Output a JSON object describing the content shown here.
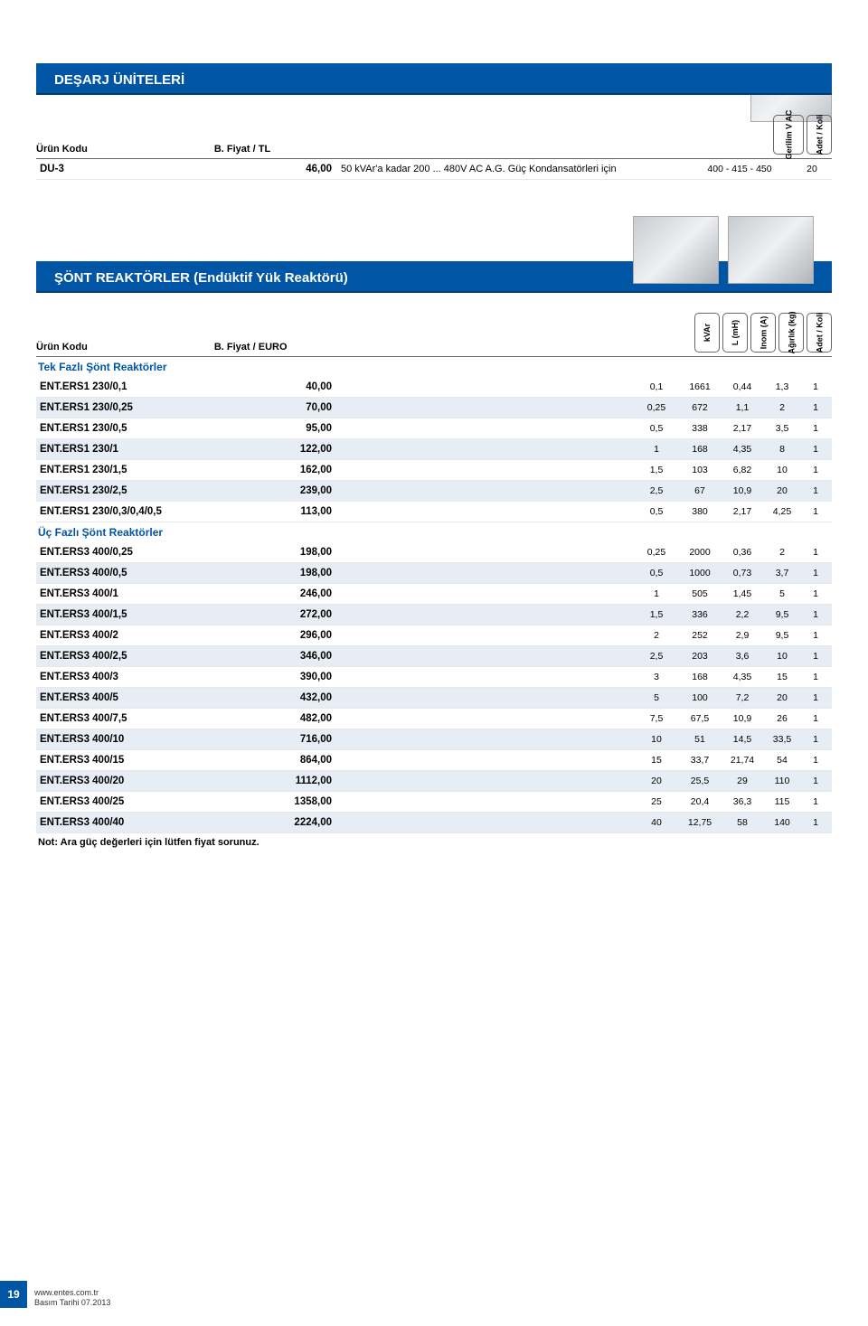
{
  "colors": {
    "header_bg": "#0055a4",
    "header_border": "#003a72",
    "row_alt_bg": "#e6edf4",
    "subsection_color": "#0055a4",
    "text": "#000000",
    "page_bg": "#ffffff"
  },
  "section_desarj": {
    "title": "DEŞARJ ÜNİTELERİ",
    "col_urun": "Ürün Kodu",
    "col_fiyat": "B. Fiyat / TL",
    "badge_v": "Gerilim V AC",
    "badge_adet": "Adet / Koli",
    "row": {
      "code": "DU-3",
      "price": "46,00",
      "desc": "50 kVAr'a kadar 200 ... 480V AC A.G. Güç Kondansatörleri için",
      "voltage": "400 - 415 - 450",
      "adet": "20"
    }
  },
  "section_sont": {
    "title": "ŞÖNT REAKTÖRLER (Endüktif Yük Reaktörü)",
    "col_urun": "Ürün Kodu",
    "col_fiyat": "B. Fiyat / EURO",
    "badges": {
      "kvar": "kVAr",
      "l": "L (mH)",
      "i": "Inom (A)",
      "kg": "Ağırlık (kg)",
      "adet": "Adet / Koli"
    },
    "sub_tek": "Tek Fazlı Şönt Reaktörler",
    "rows_tek": [
      {
        "code": "ENT.ERS1 230/0,1",
        "price": "40,00",
        "kvar": "0,1",
        "l": "1661",
        "i": "0,44",
        "kg": "1,3",
        "a": "1"
      },
      {
        "code": "ENT.ERS1 230/0,25",
        "price": "70,00",
        "kvar": "0,25",
        "l": "672",
        "i": "1,1",
        "kg": "2",
        "a": "1"
      },
      {
        "code": "ENT.ERS1 230/0,5",
        "price": "95,00",
        "kvar": "0,5",
        "l": "338",
        "i": "2,17",
        "kg": "3,5",
        "a": "1"
      },
      {
        "code": "ENT.ERS1 230/1",
        "price": "122,00",
        "kvar": "1",
        "l": "168",
        "i": "4,35",
        "kg": "8",
        "a": "1"
      },
      {
        "code": "ENT.ERS1 230/1,5",
        "price": "162,00",
        "kvar": "1,5",
        "l": "103",
        "i": "6,82",
        "kg": "10",
        "a": "1"
      },
      {
        "code": "ENT.ERS1 230/2,5",
        "price": "239,00",
        "kvar": "2,5",
        "l": "67",
        "i": "10,9",
        "kg": "20",
        "a": "1"
      },
      {
        "code": "ENT.ERS1 230/0,3/0,4/0,5",
        "price": "113,00",
        "kvar": "0,5",
        "l": "380",
        "i": "2,17",
        "kg": "4,25",
        "a": "1"
      }
    ],
    "sub_uc": "Üç Fazlı Şönt Reaktörler",
    "rows_uc": [
      {
        "code": "ENT.ERS3 400/0,25",
        "price": "198,00",
        "kvar": "0,25",
        "l": "2000",
        "i": "0,36",
        "kg": "2",
        "a": "1"
      },
      {
        "code": "ENT.ERS3 400/0,5",
        "price": "198,00",
        "kvar": "0,5",
        "l": "1000",
        "i": "0,73",
        "kg": "3,7",
        "a": "1"
      },
      {
        "code": "ENT.ERS3 400/1",
        "price": "246,00",
        "kvar": "1",
        "l": "505",
        "i": "1,45",
        "kg": "5",
        "a": "1"
      },
      {
        "code": "ENT.ERS3 400/1,5",
        "price": "272,00",
        "kvar": "1,5",
        "l": "336",
        "i": "2,2",
        "kg": "9,5",
        "a": "1"
      },
      {
        "code": "ENT.ERS3 400/2",
        "price": "296,00",
        "kvar": "2",
        "l": "252",
        "i": "2,9",
        "kg": "9,5",
        "a": "1"
      },
      {
        "code": "ENT.ERS3 400/2,5",
        "price": "346,00",
        "kvar": "2,5",
        "l": "203",
        "i": "3,6",
        "kg": "10",
        "a": "1"
      },
      {
        "code": "ENT.ERS3 400/3",
        "price": "390,00",
        "kvar": "3",
        "l": "168",
        "i": "4,35",
        "kg": "15",
        "a": "1"
      },
      {
        "code": "ENT.ERS3 400/5",
        "price": "432,00",
        "kvar": "5",
        "l": "100",
        "i": "7,2",
        "kg": "20",
        "a": "1"
      },
      {
        "code": "ENT.ERS3 400/7,5",
        "price": "482,00",
        "kvar": "7,5",
        "l": "67,5",
        "i": "10,9",
        "kg": "26",
        "a": "1"
      },
      {
        "code": "ENT.ERS3 400/10",
        "price": "716,00",
        "kvar": "10",
        "l": "51",
        "i": "14,5",
        "kg": "33,5",
        "a": "1"
      },
      {
        "code": "ENT.ERS3 400/15",
        "price": "864,00",
        "kvar": "15",
        "l": "33,7",
        "i": "21,74",
        "kg": "54",
        "a": "1"
      },
      {
        "code": "ENT.ERS3 400/20",
        "price": "1112,00",
        "kvar": "20",
        "l": "25,5",
        "i": "29",
        "kg": "110",
        "a": "1"
      },
      {
        "code": "ENT.ERS3 400/25",
        "price": "1358,00",
        "kvar": "25",
        "l": "20,4",
        "i": "36,3",
        "kg": "115",
        "a": "1"
      },
      {
        "code": "ENT.ERS3 400/40",
        "price": "2224,00",
        "kvar": "40",
        "l": "12,75",
        "i": "58",
        "kg": "140",
        "a": "1"
      }
    ],
    "note": "Not: Ara güç değerleri için lütfen fiyat sorunuz."
  },
  "footer": {
    "page": "19",
    "url": "www.entes.com.tr",
    "date": "Basım Tarihi 07.2013"
  }
}
